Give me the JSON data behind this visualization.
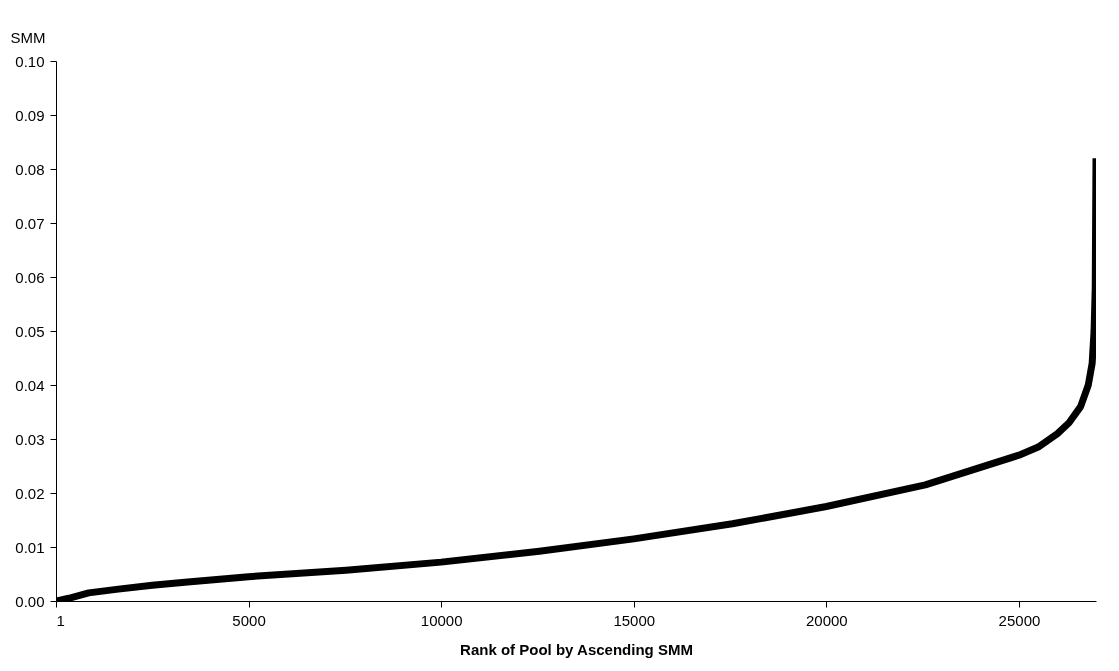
{
  "chart_data": {
    "type": "line",
    "ylabel": "SMM",
    "xlabel": "Rank of Pool by Ascending SMM",
    "x": [
      1,
      335,
      850,
      1620,
      2500,
      3420,
      5000,
      7530,
      10000,
      12550,
      15000,
      17560,
      20000,
      22570,
      25000,
      25500,
      26000,
      26300,
      26600,
      26800,
      26900,
      26950,
      26980,
      27000
    ],
    "series": [
      {
        "color": "#000000",
        "values": [
          0.0,
          0.0005,
          0.0015,
          0.0022,
          0.0029,
          0.0035,
          0.0045,
          0.0057,
          0.0072,
          0.0092,
          0.0115,
          0.0143,
          0.0175,
          0.0215,
          0.027,
          0.0285,
          0.031,
          0.033,
          0.036,
          0.04,
          0.044,
          0.05,
          0.058,
          0.082
        ]
      }
    ],
    "xlim": [
      1,
      27000
    ],
    "xticks": [
      1,
      5000,
      10000,
      15000,
      20000,
      25000
    ],
    "ylim": [
      0,
      0.1
    ],
    "yticks": [
      {
        "value": 0,
        "label": "0.00"
      },
      {
        "value": 0.01,
        "label": "0.01"
      },
      {
        "value": 0.02,
        "label": "0.02"
      },
      {
        "value": 0.03,
        "label": "0.03"
      },
      {
        "value": 0.04,
        "label": "0.04"
      },
      {
        "value": 0.05,
        "label": "0.05"
      },
      {
        "value": 0.06,
        "label": "0.06"
      },
      {
        "value": 0.07,
        "label": "0.07"
      },
      {
        "value": 0.08,
        "label": "0.08"
      },
      {
        "value": 0.09,
        "label": "0.09"
      },
      {
        "value": 0.1,
        "label": "0.10"
      }
    ],
    "grid": false,
    "legend": false,
    "marker": "none",
    "line_style": "solid"
  }
}
